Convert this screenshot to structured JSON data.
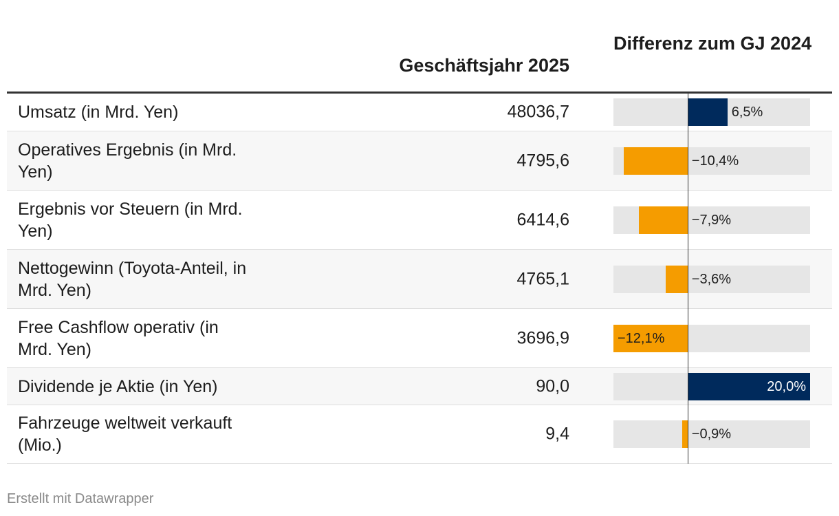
{
  "header": {
    "value_col": "Geschäftsjahr 2025",
    "diff_col": "Differenz zum GJ 2024"
  },
  "colors": {
    "positive": "#002a5c",
    "negative": "#f59c00",
    "track": "#e6e6e6"
  },
  "chart_data": {
    "type": "table",
    "columns": [
      "",
      "Geschäftsjahr 2025",
      "Differenz zum GJ 2024"
    ],
    "bar_range": [
      -12.1,
      20.0
    ],
    "rows": [
      {
        "label": "Umsatz (in Mrd. Yen)",
        "value": "48036,7",
        "diff": 6.5,
        "diff_label": "6,5%"
      },
      {
        "label": "Operatives Ergebnis (in Mrd. Yen)",
        "value": "4795,6",
        "diff": -10.4,
        "diff_label": "−10,4%"
      },
      {
        "label": "Ergebnis vor Steuern (in Mrd. Yen)",
        "value": "6414,6",
        "diff": -7.9,
        "diff_label": "−7,9%"
      },
      {
        "label": "Nettogewinn (Toyota-Anteil, in Mrd. Yen)",
        "value": "4765,1",
        "diff": -3.6,
        "diff_label": "−3,6%"
      },
      {
        "label": "Free Cashflow operativ (in Mrd. Yen)",
        "value": "3696,9",
        "diff": -12.1,
        "diff_label": "−12,1%"
      },
      {
        "label": "Dividende je Aktie (in Yen)",
        "value": "90,0",
        "diff": 20.0,
        "diff_label": "20,0%"
      },
      {
        "label": "Fahrzeuge weltweit verkauft (Mio.)",
        "value": "9,4",
        "diff": -0.9,
        "diff_label": "−0,9%"
      }
    ]
  },
  "footer": {
    "credit": "Erstellt mit Datawrapper"
  }
}
